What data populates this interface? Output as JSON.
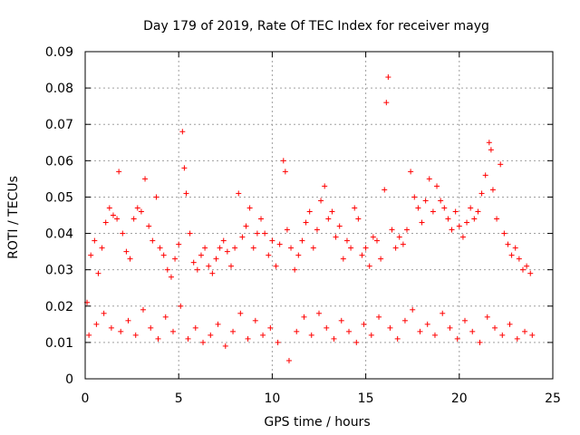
{
  "chart_data": {
    "type": "scatter",
    "title": "Day 179 of 2019, Rate Of TEC Index for receiver mayg",
    "xlabel": "GPS time / hours",
    "ylabel": "ROTI / TECUs",
    "xlim": [
      0,
      25
    ],
    "ylim": [
      0,
      0.09
    ],
    "xticks": [
      0,
      5,
      10,
      15,
      20,
      25
    ],
    "xtick_labels": [
      "0",
      "5",
      "10",
      "15",
      "20",
      "25"
    ],
    "yticks": [
      0,
      0.01,
      0.02,
      0.03,
      0.04,
      0.05,
      0.06,
      0.07,
      0.08,
      0.09
    ],
    "ytick_labels": [
      "0",
      "0.01",
      "0.02",
      "0.03",
      "0.04",
      "0.05",
      "0.06",
      "0.07",
      "0.08",
      "0.09"
    ],
    "grid": true,
    "marker": "plus",
    "color": "#ff0000",
    "series": [
      {
        "name": "ROTI",
        "points": [
          [
            0.1,
            0.021
          ],
          [
            0.3,
            0.034
          ],
          [
            0.5,
            0.038
          ],
          [
            0.7,
            0.029
          ],
          [
            0.9,
            0.036
          ],
          [
            1.1,
            0.043
          ],
          [
            1.3,
            0.047
          ],
          [
            1.5,
            0.045
          ],
          [
            1.7,
            0.044
          ],
          [
            1.8,
            0.057
          ],
          [
            2.0,
            0.04
          ],
          [
            2.2,
            0.035
          ],
          [
            2.4,
            0.033
          ],
          [
            2.6,
            0.044
          ],
          [
            2.8,
            0.047
          ],
          [
            3.0,
            0.046
          ],
          [
            3.2,
            0.055
          ],
          [
            3.4,
            0.042
          ],
          [
            3.6,
            0.038
          ],
          [
            3.8,
            0.05
          ],
          [
            4.0,
            0.036
          ],
          [
            4.2,
            0.034
          ],
          [
            4.4,
            0.03
          ],
          [
            4.6,
            0.028
          ],
          [
            4.8,
            0.033
          ],
          [
            5.0,
            0.037
          ],
          [
            5.2,
            0.068
          ],
          [
            5.3,
            0.058
          ],
          [
            5.4,
            0.051
          ],
          [
            5.6,
            0.04
          ],
          [
            5.8,
            0.032
          ],
          [
            6.0,
            0.03
          ],
          [
            6.2,
            0.034
          ],
          [
            6.4,
            0.036
          ],
          [
            6.6,
            0.031
          ],
          [
            6.8,
            0.029
          ],
          [
            7.0,
            0.033
          ],
          [
            7.2,
            0.036
          ],
          [
            7.4,
            0.038
          ],
          [
            7.6,
            0.035
          ],
          [
            7.8,
            0.031
          ],
          [
            8.0,
            0.036
          ],
          [
            8.2,
            0.051
          ],
          [
            8.4,
            0.039
          ],
          [
            8.6,
            0.042
          ],
          [
            8.8,
            0.047
          ],
          [
            9.0,
            0.036
          ],
          [
            9.2,
            0.04
          ],
          [
            9.4,
            0.044
          ],
          [
            9.6,
            0.04
          ],
          [
            9.8,
            0.034
          ],
          [
            10.0,
            0.038
          ],
          [
            10.2,
            0.031
          ],
          [
            10.4,
            0.037
          ],
          [
            10.6,
            0.06
          ],
          [
            10.7,
            0.057
          ],
          [
            10.8,
            0.041
          ],
          [
            11.0,
            0.036
          ],
          [
            11.2,
            0.03
          ],
          [
            11.4,
            0.034
          ],
          [
            11.6,
            0.038
          ],
          [
            11.8,
            0.043
          ],
          [
            12.0,
            0.046
          ],
          [
            12.2,
            0.036
          ],
          [
            12.4,
            0.041
          ],
          [
            12.6,
            0.049
          ],
          [
            12.8,
            0.053
          ],
          [
            13.0,
            0.044
          ],
          [
            13.2,
            0.046
          ],
          [
            13.4,
            0.039
          ],
          [
            13.6,
            0.042
          ],
          [
            13.8,
            0.033
          ],
          [
            14.0,
            0.038
          ],
          [
            14.2,
            0.036
          ],
          [
            14.4,
            0.047
          ],
          [
            14.6,
            0.044
          ],
          [
            14.8,
            0.034
          ],
          [
            15.0,
            0.036
          ],
          [
            15.2,
            0.031
          ],
          [
            15.4,
            0.039
          ],
          [
            15.6,
            0.038
          ],
          [
            15.8,
            0.033
          ],
          [
            16.0,
            0.052
          ],
          [
            16.1,
            0.076
          ],
          [
            16.2,
            0.083
          ],
          [
            16.4,
            0.041
          ],
          [
            16.6,
            0.036
          ],
          [
            16.8,
            0.039
          ],
          [
            17.0,
            0.037
          ],
          [
            17.2,
            0.041
          ],
          [
            17.4,
            0.057
          ],
          [
            17.6,
            0.05
          ],
          [
            17.8,
            0.047
          ],
          [
            18.0,
            0.043
          ],
          [
            18.2,
            0.049
          ],
          [
            18.4,
            0.055
          ],
          [
            18.6,
            0.046
          ],
          [
            18.8,
            0.053
          ],
          [
            19.0,
            0.049
          ],
          [
            19.2,
            0.047
          ],
          [
            19.4,
            0.044
          ],
          [
            19.6,
            0.041
          ],
          [
            19.8,
            0.046
          ],
          [
            20.0,
            0.042
          ],
          [
            20.2,
            0.039
          ],
          [
            20.4,
            0.043
          ],
          [
            20.6,
            0.047
          ],
          [
            20.8,
            0.044
          ],
          [
            21.0,
            0.046
          ],
          [
            21.2,
            0.051
          ],
          [
            21.4,
            0.056
          ],
          [
            21.6,
            0.065
          ],
          [
            21.7,
            0.063
          ],
          [
            21.8,
            0.052
          ],
          [
            22.0,
            0.044
          ],
          [
            22.2,
            0.059
          ],
          [
            22.4,
            0.04
          ],
          [
            22.6,
            0.037
          ],
          [
            22.8,
            0.034
          ],
          [
            23.0,
            0.036
          ],
          [
            23.2,
            0.033
          ],
          [
            23.4,
            0.03
          ],
          [
            23.6,
            0.031
          ],
          [
            23.8,
            0.029
          ],
          [
            0.2,
            0.012
          ],
          [
            0.6,
            0.015
          ],
          [
            1.0,
            0.018
          ],
          [
            1.4,
            0.014
          ],
          [
            1.9,
            0.013
          ],
          [
            2.3,
            0.016
          ],
          [
            2.7,
            0.012
          ],
          [
            3.1,
            0.019
          ],
          [
            3.5,
            0.014
          ],
          [
            3.9,
            0.011
          ],
          [
            4.3,
            0.017
          ],
          [
            4.7,
            0.013
          ],
          [
            5.1,
            0.02
          ],
          [
            5.5,
            0.011
          ],
          [
            5.9,
            0.014
          ],
          [
            6.3,
            0.01
          ],
          [
            6.7,
            0.012
          ],
          [
            7.1,
            0.015
          ],
          [
            7.5,
            0.009
          ],
          [
            7.9,
            0.013
          ],
          [
            8.3,
            0.018
          ],
          [
            8.7,
            0.011
          ],
          [
            9.1,
            0.016
          ],
          [
            9.5,
            0.012
          ],
          [
            9.9,
            0.014
          ],
          [
            10.3,
            0.01
          ],
          [
            10.9,
            0.005
          ],
          [
            11.3,
            0.013
          ],
          [
            11.7,
            0.017
          ],
          [
            12.1,
            0.012
          ],
          [
            12.5,
            0.018
          ],
          [
            12.9,
            0.014
          ],
          [
            13.3,
            0.011
          ],
          [
            13.7,
            0.016
          ],
          [
            14.1,
            0.013
          ],
          [
            14.5,
            0.01
          ],
          [
            14.9,
            0.015
          ],
          [
            15.3,
            0.012
          ],
          [
            15.7,
            0.017
          ],
          [
            16.3,
            0.014
          ],
          [
            16.7,
            0.011
          ],
          [
            17.1,
            0.016
          ],
          [
            17.5,
            0.019
          ],
          [
            17.9,
            0.013
          ],
          [
            18.3,
            0.015
          ],
          [
            18.7,
            0.012
          ],
          [
            19.1,
            0.018
          ],
          [
            19.5,
            0.014
          ],
          [
            19.9,
            0.011
          ],
          [
            20.3,
            0.016
          ],
          [
            20.7,
            0.013
          ],
          [
            21.1,
            0.01
          ],
          [
            21.5,
            0.017
          ],
          [
            21.9,
            0.014
          ],
          [
            22.3,
            0.012
          ],
          [
            22.7,
            0.015
          ],
          [
            23.1,
            0.011
          ],
          [
            23.5,
            0.013
          ],
          [
            23.9,
            0.012
          ]
        ]
      }
    ]
  }
}
